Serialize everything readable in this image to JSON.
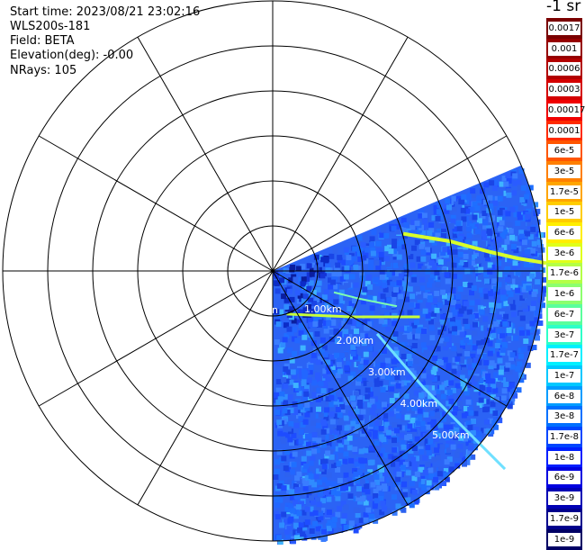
{
  "info": {
    "start_time": "Start time: 2023/08/21 23:02:16",
    "instrument": "WLS200s-181",
    "field": "Field: BETA",
    "elevation": "Elevation(deg): -0.00",
    "nrays": "NRays: 105"
  },
  "colorbar": {
    "unit_label": "-1 sr",
    "labels": [
      "0.0017",
      "0.001",
      "0.0006",
      "0.0003",
      "0.00017",
      "0.0001",
      "6e-5",
      "3e-5",
      "1.7e-5",
      "1e-5",
      "6e-6",
      "3e-6",
      "1.7e-6",
      "1e-6",
      "6e-7",
      "3e-7",
      "1.7e-7",
      "1e-7",
      "6e-8",
      "3e-8",
      "1.7e-8",
      "1e-8",
      "6e-9",
      "3e-9",
      "1.7e-9",
      "1e-9"
    ],
    "colors": [
      "#7a0000",
      "#960000",
      "#b20000",
      "#d40000",
      "#f00000",
      "#ff2a00",
      "#ff5500",
      "#ff7f00",
      "#ffa500",
      "#ffcc00",
      "#ffee00",
      "#e0ff1a",
      "#b4ff46",
      "#8cff6e",
      "#5aff9c",
      "#2effc8",
      "#00f0ff",
      "#00c8ff",
      "#009cff",
      "#0070ff",
      "#0046ff",
      "#001eff",
      "#0000e0",
      "#0000b4",
      "#00008c",
      "#000064"
    ]
  },
  "range_labels": [
    "1.00km",
    "2.00km",
    "3.00km",
    "4.00km",
    "5.00km"
  ],
  "range_label_partial": "n",
  "scan": {
    "azimuth_start_deg": 67,
    "azimuth_end_deg": 180,
    "max_range_km": 6
  },
  "rings": {
    "count": 6,
    "spoke_step_deg": 30
  }
}
